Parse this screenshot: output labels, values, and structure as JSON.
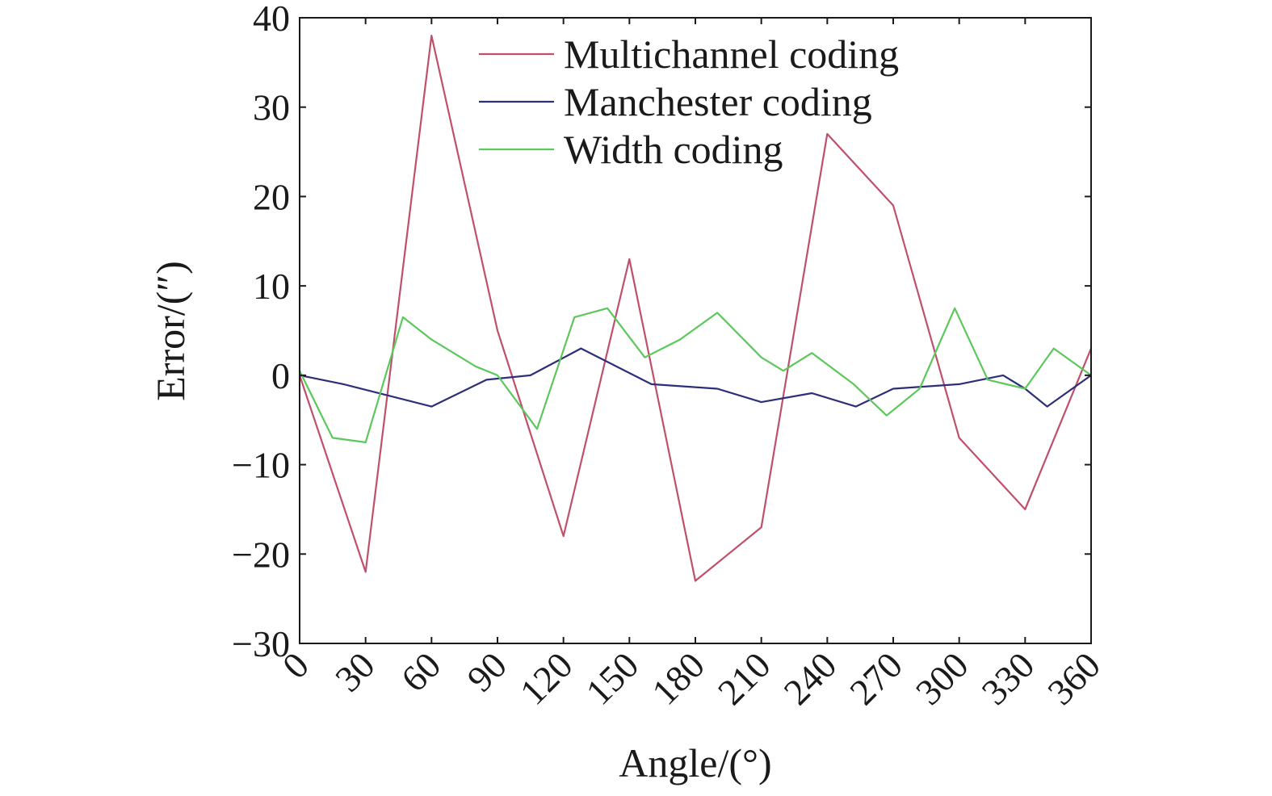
{
  "chart_data": {
    "type": "line",
    "title": "",
    "xlabel": "Angle/(°)",
    "ylabel": "Error/(″)",
    "xlim": [
      0,
      360
    ],
    "ylim": [
      -30,
      40
    ],
    "xticks": [
      0,
      30,
      60,
      90,
      120,
      150,
      180,
      210,
      240,
      270,
      300,
      330,
      360
    ],
    "yticks": [
      40,
      30,
      20,
      10,
      0,
      -10,
      -20,
      -30
    ],
    "ytick_labels": [
      "40",
      "30",
      "20",
      "10",
      "0",
      "−10",
      "−20",
      "−30"
    ],
    "grid": false,
    "legend_position": "top-right",
    "series": [
      {
        "name": "Multichannel coding",
        "color": "#c0506a",
        "x": [
          0,
          30,
          60,
          90,
          120,
          150,
          180,
          210,
          240,
          270,
          300,
          330,
          360
        ],
        "y": [
          0,
          -22,
          38,
          5,
          -18,
          13,
          -23,
          -17,
          27,
          19,
          -7,
          -15,
          3
        ]
      },
      {
        "name": "Manchester coding",
        "color": "#2e2f7a",
        "x": [
          0,
          20,
          60,
          85,
          105,
          128,
          160,
          190,
          210,
          233,
          253,
          270,
          300,
          320,
          330,
          340,
          360
        ],
        "y": [
          0,
          -1,
          -3.5,
          -0.5,
          0,
          3,
          -1,
          -1.5,
          -3,
          -2,
          -3.5,
          -1.5,
          -1,
          0,
          -1.5,
          -3.5,
          0
        ]
      },
      {
        "name": "Width coding",
        "color": "#5cc85c",
        "x": [
          0,
          15,
          30,
          47,
          60,
          80,
          90,
          108,
          125,
          140,
          157,
          173,
          190,
          210,
          220,
          233,
          252,
          267,
          282,
          298,
          313,
          330,
          343,
          360
        ],
        "y": [
          0.5,
          -7,
          -7.5,
          6.5,
          4,
          1,
          0,
          -6,
          6.5,
          7.5,
          2,
          4,
          7,
          2,
          0.5,
          2.5,
          -1,
          -4.5,
          -1.5,
          7.5,
          -0.5,
          -1.5,
          3,
          0
        ]
      }
    ]
  }
}
